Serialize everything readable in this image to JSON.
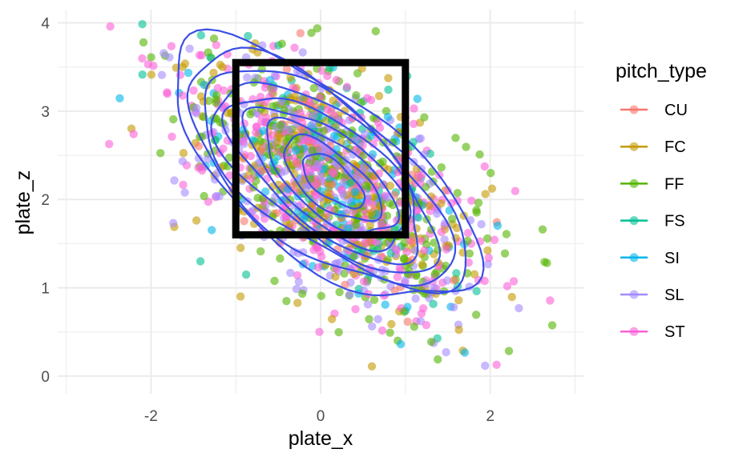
{
  "chart_data": {
    "type": "scatter",
    "xlabel": "plate_x",
    "ylabel": "plate_z",
    "xlim": [
      -3.1,
      3.1
    ],
    "ylim": [
      -0.2,
      4.15
    ],
    "x_ticks": [
      -2,
      0,
      2
    ],
    "x_tick_labels": [
      "-2",
      "0",
      "2"
    ],
    "y_ticks": [
      0,
      1,
      2,
      3,
      4
    ],
    "y_tick_labels": [
      "0",
      "1",
      "2",
      "3",
      "4"
    ],
    "grid": true,
    "legend": {
      "title": "pitch_type",
      "position": "right"
    },
    "series": [
      {
        "name": "CU",
        "color": "#F8766D"
      },
      {
        "name": "FC",
        "color": "#C49A00"
      },
      {
        "name": "FF",
        "color": "#53B400"
      },
      {
        "name": "FS",
        "color": "#00C094"
      },
      {
        "name": "SI",
        "color": "#00B6EB"
      },
      {
        "name": "SL",
        "color": "#A58AFF"
      },
      {
        "name": "ST",
        "color": "#FB61D7"
      }
    ],
    "point_density": {
      "center": [
        0.1,
        2.2
      ],
      "sd": [
        0.85,
        0.72
      ],
      "correlation": -0.55,
      "approx_count": 1500
    },
    "strike_zone": {
      "x": [
        -1.0,
        1.0
      ],
      "z": [
        1.6,
        3.55
      ],
      "color": "#000000"
    },
    "density_contours": {
      "color": "#3B4FE6",
      "levels": 9
    }
  }
}
